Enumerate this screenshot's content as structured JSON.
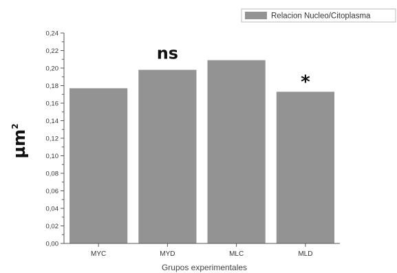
{
  "chart_data": {
    "type": "bar",
    "title": "",
    "categories": [
      "MYC",
      "MYD",
      "MLC",
      "MLD"
    ],
    "series": [
      {
        "name": "Relacion Nucleo/Citoplasma",
        "values": [
          0.177,
          0.198,
          0.209,
          0.173
        ]
      }
    ],
    "xlabel": "Grupos experimentales",
    "ylabel": "µm",
    "ylabel_superscript": "2",
    "ylim": [
      0,
      0.24
    ],
    "yticks": [
      "0,00",
      "0,02",
      "0,04",
      "0,06",
      "0,08",
      "0,10",
      "0,12",
      "0,14",
      "0,16",
      "0,18",
      "0,20",
      "0,22",
      "0,24"
    ],
    "annotations": [
      {
        "category": "MYD",
        "text": "ns"
      },
      {
        "category": "MLD",
        "text": "*"
      }
    ],
    "grid": false,
    "legend_position": "top-right",
    "colors": {
      "bar": "#939393",
      "axis": "#555555"
    }
  }
}
